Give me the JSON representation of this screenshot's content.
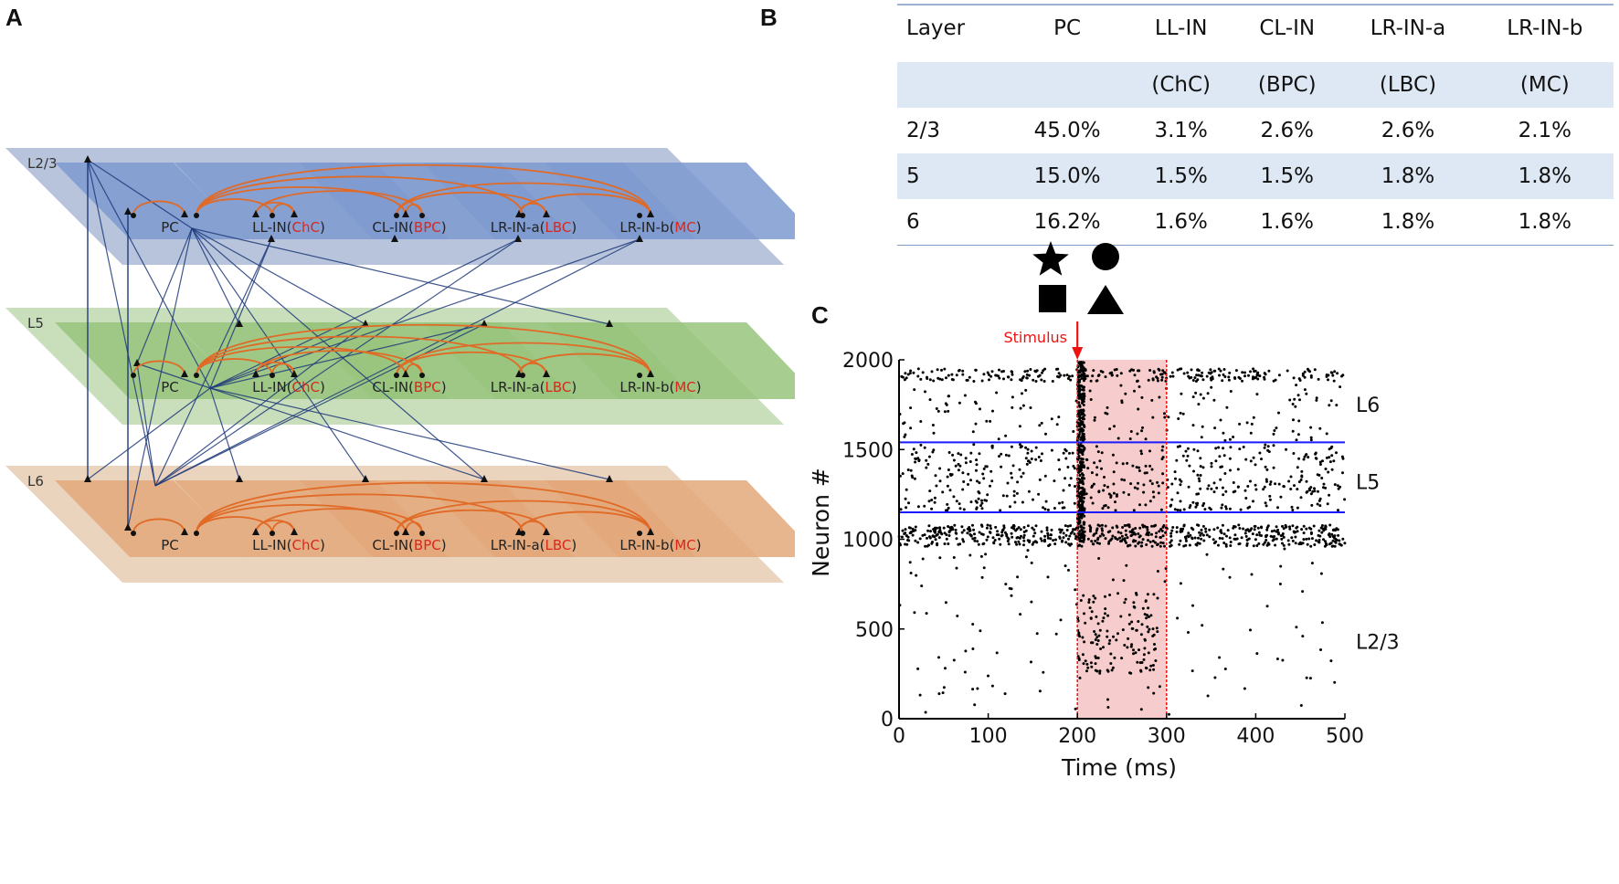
{
  "panels": {
    "a": "A",
    "b": "B",
    "c": "C"
  },
  "diagram": {
    "layers": [
      {
        "id": "l23",
        "label": "L2/3",
        "color": "#9fb0cf",
        "plate_color": "#7e9ad0"
      },
      {
        "id": "l5",
        "label": "L5",
        "color": "#b7d4a6",
        "plate_color": "#98c47e"
      },
      {
        "id": "l6",
        "label": "L6",
        "color": "#e3c6a8",
        "plate_color": "#e3a87a"
      }
    ],
    "cells": [
      {
        "name": "PC",
        "pre": "PC",
        "red": "",
        "post": ""
      },
      {
        "name": "LL-IN",
        "pre": "LL-IN(",
        "red": "ChC",
        "post": ")"
      },
      {
        "name": "CL-IN",
        "pre": "CL-IN(",
        "red": "BPC",
        "post": ")"
      },
      {
        "name": "LR-IN-a",
        "pre": "LR-IN-a(",
        "red": "LBC",
        "post": ")"
      },
      {
        "name": "LR-IN-b",
        "pre": "LR-IN-b(",
        "red": "MC",
        "post": ")"
      }
    ],
    "colors": {
      "intra": "#e06a26",
      "inter": "#1f3a7a",
      "highlight": "#d8281e"
    }
  },
  "table": {
    "header": [
      "Layer",
      "PC",
      "LL-IN",
      "CL-IN",
      "LR-IN-a",
      "LR-IN-b"
    ],
    "subheader": [
      "",
      "",
      "(ChC)",
      "(BPC)",
      "(LBC)",
      "(MC)"
    ],
    "rows": [
      [
        "2/3",
        "45.0%",
        "3.1%",
        "2.6%",
        "2.6%",
        "2.1%"
      ],
      [
        "5",
        "15.0%",
        "1.5%",
        "1.5%",
        "1.8%",
        "1.8%"
      ],
      [
        "6",
        "16.2%",
        "1.6%",
        "1.6%",
        "1.8%",
        "1.8%"
      ]
    ]
  },
  "legend_icons": [
    "star-icon",
    "circle-icon",
    "square-icon",
    "triangle-icon"
  ],
  "chart_data": {
    "type": "scatter",
    "title": "",
    "xlabel": "Time (ms)",
    "ylabel": "Neuron #",
    "xlim": [
      0,
      500
    ],
    "ylim": [
      0,
      2000
    ],
    "xticks": [
      0,
      100,
      200,
      300,
      400,
      500
    ],
    "yticks": [
      0,
      500,
      1000,
      1500,
      2000
    ],
    "layer_boundaries": [
      1150,
      1540
    ],
    "region_labels": [
      {
        "text": "L6",
        "y": 1750
      },
      {
        "text": "L5",
        "y": 1320
      },
      {
        "text": "L2/3",
        "y": 430
      }
    ],
    "stimulus": {
      "label": "Stimulus",
      "time": 200
    },
    "stimulus_window": [
      200,
      300
    ],
    "series_description": "spike raster",
    "spike_bands": [
      {
        "name": "L6 top",
        "y_range": [
          1880,
          1950
        ],
        "x_range": [
          0,
          500
        ],
        "count": 260
      },
      {
        "name": "L6 sparse",
        "y_range": [
          1550,
          1860
        ],
        "x_range": [
          0,
          500
        ],
        "count": 140
      },
      {
        "name": "L5",
        "y_range": [
          1160,
          1530
        ],
        "x_range": [
          0,
          500
        ],
        "count": 480
      },
      {
        "name": "L5 to L6 boundary",
        "y_range": [
          960,
          1080
        ],
        "x_range": [
          0,
          500
        ],
        "count": 620
      },
      {
        "name": "L2/3",
        "y_range": [
          20,
          950
        ],
        "x_range": [
          0,
          500
        ],
        "count": 120
      },
      {
        "name": "stimulus burst",
        "y_range": [
          960,
          1990
        ],
        "x_range": [
          200,
          208
        ],
        "count": 380
      },
      {
        "name": "stimulus L2/3",
        "y_range": [
          250,
          700
        ],
        "x_range": [
          200,
          290
        ],
        "count": 140
      }
    ],
    "colors": {
      "boundary": "#1a1aff",
      "stimulus": "#ee1111",
      "window": "#f7cccc"
    }
  }
}
